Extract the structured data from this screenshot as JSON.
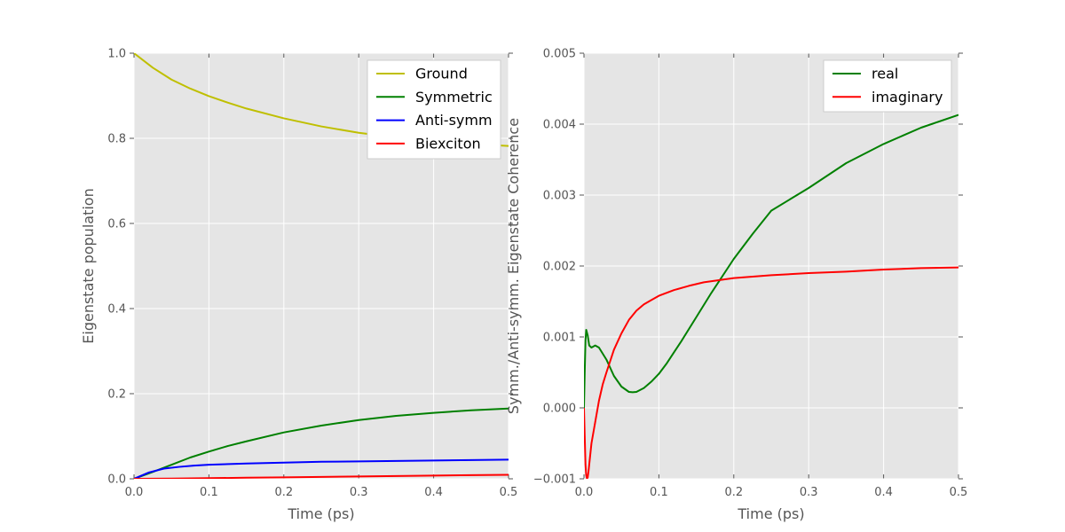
{
  "figure": {
    "background": "#ffffff",
    "panel_background": "#e5e5e5",
    "grid_color": "#ffffff"
  },
  "chart_data": [
    {
      "type": "line",
      "xlabel": "Time (ps)",
      "ylabel": "Eigenstate population",
      "xlim": [
        0.0,
        0.5
      ],
      "ylim": [
        0.0,
        1.0
      ],
      "xticks": [
        "0.0",
        "0.1",
        "0.2",
        "0.3",
        "0.4",
        "0.5"
      ],
      "yticks": [
        "0.0",
        "0.2",
        "0.4",
        "0.6",
        "0.8",
        "1.0"
      ],
      "grid": true,
      "legend_position": "top-right",
      "series": [
        {
          "name": "Ground",
          "color": "#bfbf00",
          "x": [
            0.0,
            0.025,
            0.05,
            0.075,
            0.1,
            0.125,
            0.15,
            0.2,
            0.25,
            0.3,
            0.35,
            0.4,
            0.45,
            0.5
          ],
          "y": [
            1.0,
            0.966,
            0.938,
            0.917,
            0.899,
            0.884,
            0.87,
            0.847,
            0.828,
            0.813,
            0.802,
            0.793,
            0.787,
            0.782
          ]
        },
        {
          "name": "Symmetric",
          "color": "#008000",
          "x": [
            0.0,
            0.025,
            0.05,
            0.075,
            0.1,
            0.125,
            0.15,
            0.2,
            0.25,
            0.3,
            0.35,
            0.4,
            0.45,
            0.5
          ],
          "y": [
            0.0,
            0.016,
            0.033,
            0.05,
            0.064,
            0.077,
            0.088,
            0.109,
            0.125,
            0.138,
            0.148,
            0.155,
            0.161,
            0.165
          ]
        },
        {
          "name": "Anti-symm",
          "color": "#0000ff",
          "x": [
            0.0,
            0.02,
            0.04,
            0.06,
            0.08,
            0.1,
            0.15,
            0.2,
            0.25,
            0.3,
            0.35,
            0.4,
            0.45,
            0.5
          ],
          "y": [
            0.0,
            0.015,
            0.024,
            0.028,
            0.031,
            0.033,
            0.036,
            0.038,
            0.04,
            0.041,
            0.042,
            0.043,
            0.044,
            0.045
          ]
        },
        {
          "name": "Biexciton",
          "color": "#ff0000",
          "x": [
            0.0,
            0.05,
            0.1,
            0.15,
            0.2,
            0.25,
            0.3,
            0.35,
            0.4,
            0.45,
            0.5
          ],
          "y": [
            0.0,
            0.0005,
            0.0015,
            0.0025,
            0.0035,
            0.0045,
            0.0055,
            0.0065,
            0.0075,
            0.0085,
            0.0095
          ]
        }
      ]
    },
    {
      "type": "line",
      "xlabel": "Time (ps)",
      "ylabel": "Symm./Anti-symm. Eigenstate Coherence",
      "xlim": [
        0.0,
        0.5
      ],
      "ylim": [
        -0.001,
        0.005
      ],
      "xticks": [
        "0.0",
        "0.1",
        "0.2",
        "0.3",
        "0.4",
        "0.5"
      ],
      "yticks": [
        "−0.001",
        "0.000",
        "0.001",
        "0.002",
        "0.003",
        "0.004",
        "0.005"
      ],
      "grid": true,
      "legend_position": "top-right",
      "series": [
        {
          "name": "real",
          "color": "#008000",
          "x": [
            0.0,
            0.001,
            0.002,
            0.003,
            0.005,
            0.007,
            0.01,
            0.015,
            0.02,
            0.03,
            0.04,
            0.05,
            0.06,
            0.065,
            0.07,
            0.08,
            0.09,
            0.1,
            0.11,
            0.12,
            0.13,
            0.15,
            0.17,
            0.2,
            0.225,
            0.25,
            0.3,
            0.35,
            0.4,
            0.45,
            0.5
          ],
          "y": [
            0.0,
            0.0005,
            0.00095,
            0.0011,
            0.00102,
            0.00088,
            0.00085,
            0.00088,
            0.00085,
            0.00068,
            0.00045,
            0.0003,
            0.000225,
            0.00022,
            0.000225,
            0.00028,
            0.00037,
            0.00048,
            0.00062,
            0.00078,
            0.00094,
            0.00128,
            0.00162,
            0.0021,
            0.00245,
            0.00278,
            0.0031,
            0.00345,
            0.00372,
            0.00395,
            0.00413
          ]
        },
        {
          "name": "imaginary",
          "color": "#ff0000",
          "x": [
            0.0,
            0.001,
            0.002,
            0.003,
            0.004,
            0.005,
            0.006,
            0.008,
            0.01,
            0.015,
            0.02,
            0.025,
            0.03,
            0.04,
            0.05,
            0.06,
            0.07,
            0.08,
            0.09,
            0.1,
            0.12,
            0.14,
            0.16,
            0.18,
            0.2,
            0.25,
            0.3,
            0.35,
            0.4,
            0.45,
            0.5
          ],
          "y": [
            0.0,
            -0.0004,
            -0.0008,
            -0.00095,
            -0.001,
            -0.00098,
            -0.0009,
            -0.0007,
            -0.0005,
            -0.0002,
            0.0001,
            0.00033,
            0.0005,
            0.00082,
            0.00105,
            0.00124,
            0.00137,
            0.00146,
            0.00152,
            0.00158,
            0.00166,
            0.00172,
            0.00177,
            0.0018,
            0.00183,
            0.00187,
            0.0019,
            0.00192,
            0.00195,
            0.00197,
            0.00198
          ]
        }
      ]
    }
  ]
}
